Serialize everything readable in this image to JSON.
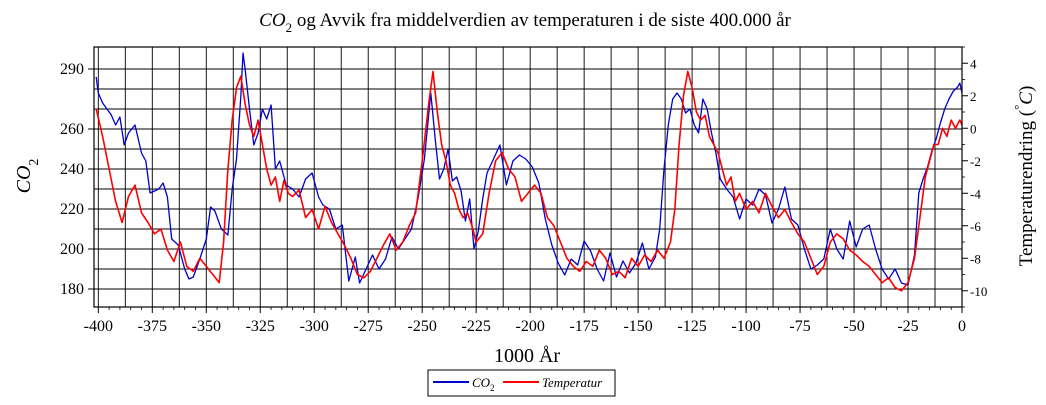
{
  "chart_data": {
    "type": "line",
    "title_prefix": "CO",
    "title_sub": "2",
    "title_rest": " og Avvik fra middelverdien av temperaturen i de siste 400.000 år",
    "xlabel": "1000 År",
    "ylabel_left_main": "CO",
    "ylabel_left_sub": "2",
    "ylabel_right_main": "Temperaturendring (",
    "ylabel_right_unit": "C",
    "ylabel_right_deg": "°",
    "ylabel_right_close": ")",
    "xlim": [
      -402,
      0
    ],
    "ylim_left": [
      171,
      301
    ],
    "ylim_right": [
      -11,
      5
    ],
    "x_ticks": [
      -400,
      -375,
      -350,
      -325,
      -300,
      -275,
      -250,
      -225,
      -200,
      -175,
      -150,
      -125,
      -100,
      -75,
      -50,
      -25,
      0
    ],
    "x_tick_labels": [
      "-400",
      "-375",
      "-350",
      "-325",
      "-300",
      "-275",
      "-250",
      "-225",
      "-200",
      "-175",
      "-150",
      "-125",
      "-100",
      "-75",
      "-50",
      "-25",
      "0"
    ],
    "y_left_ticks": [
      180,
      200,
      220,
      240,
      260,
      290
    ],
    "y_left_tick_labels": [
      "180",
      "200",
      "220",
      "240",
      "260",
      "290"
    ],
    "y_right_ticks": [
      -10,
      -8,
      -6,
      -4,
      -2,
      0,
      2,
      4
    ],
    "y_right_tick_labels": [
      "-10",
      "-8",
      "-6",
      "-4",
      "-2",
      "0",
      "2",
      "4"
    ],
    "grid": true,
    "legend_position": "bottom-center",
    "series": [
      {
        "name": "CO",
        "name_sub": "2",
        "axis": "left",
        "color": "#0000cc",
        "x": [
          -401,
          -400,
          -398,
          -394,
          -392,
          -390,
          -388,
          -386,
          -383,
          -380,
          -378,
          -376,
          -372,
          -370,
          -368,
          -366,
          -363,
          -360,
          -358,
          -356,
          -353,
          -350,
          -348,
          -346,
          -343,
          -340,
          -338,
          -336,
          -334,
          -333,
          -332,
          -330,
          -328,
          -326,
          -324,
          -322,
          -320,
          -318,
          -316,
          -313,
          -310,
          -307,
          -304,
          -301,
          -298,
          -296,
          -293,
          -290,
          -287,
          -284,
          -281,
          -279,
          -276,
          -273,
          -270,
          -267,
          -264,
          -261,
          -258,
          -255,
          -252,
          -249,
          -246,
          -244,
          -242,
          -240,
          -238,
          -236,
          -234,
          -232,
          -230,
          -228,
          -226,
          -224,
          -222,
          -220,
          -217,
          -214,
          -211,
          -208,
          -205,
          -202,
          -199,
          -196,
          -193,
          -190,
          -187,
          -184,
          -181,
          -178,
          -175,
          -172,
          -169,
          -166,
          -163,
          -160,
          -157,
          -154,
          -151,
          -148,
          -145,
          -142,
          -140,
          -138,
          -136,
          -134,
          -132,
          -130,
          -128,
          -126,
          -124,
          -122,
          -120,
          -118,
          -116,
          -114,
          -112,
          -109,
          -106,
          -103,
          -100,
          -97,
          -94,
          -91,
          -88,
          -85,
          -82,
          -79,
          -76,
          -73,
          -70,
          -67,
          -64,
          -61,
          -58,
          -55,
          -52,
          -49,
          -46,
          -43,
          -40,
          -37,
          -34,
          -31,
          -28,
          -25,
          -22,
          -20,
          -18,
          -16,
          -14,
          -12,
          -10,
          -8,
          -6,
          -4,
          -2,
          -1,
          0
        ],
        "y": [
          286,
          278,
          273,
          267,
          262,
          266,
          252,
          258,
          262,
          248,
          244,
          228,
          230,
          233,
          226,
          205,
          202,
          190,
          185,
          186,
          195,
          205,
          221,
          219,
          210,
          207,
          230,
          245,
          276,
          298,
          290,
          270,
          252,
          258,
          270,
          265,
          272,
          240,
          244,
          232,
          230,
          226,
          235,
          238,
          226,
          222,
          220,
          210,
          212,
          184,
          196,
          183,
          190,
          197,
          190,
          195,
          206,
          200,
          205,
          210,
          225,
          245,
          278,
          255,
          235,
          240,
          250,
          234,
          236,
          229,
          214,
          225,
          200,
          209,
          225,
          238,
          245,
          252,
          232,
          244,
          247,
          245,
          241,
          233,
          215,
          202,
          193,
          187,
          195,
          192,
          204,
          199,
          190,
          184,
          198,
          186,
          194,
          188,
          193,
          203,
          190,
          196,
          210,
          240,
          262,
          275,
          278,
          275,
          268,
          270,
          262,
          258,
          275,
          270,
          258,
          248,
          235,
          230,
          226,
          215,
          225,
          222,
          230,
          227,
          213,
          220,
          231,
          215,
          212,
          200,
          190,
          192,
          195,
          210,
          200,
          195,
          214,
          201,
          210,
          212,
          200,
          190,
          185,
          190,
          183,
          182,
          197,
          228,
          235,
          241,
          249,
          255,
          263,
          270,
          275,
          279,
          281,
          283,
          278
        ]
      },
      {
        "name": "Temperatur",
        "axis": "right",
        "color": "#ff0000",
        "x": [
          -401,
          -398,
          -395,
          -392,
          -389,
          -386,
          -383,
          -380,
          -377,
          -374,
          -371,
          -368,
          -365,
          -362,
          -359,
          -356,
          -353,
          -350,
          -347,
          -344,
          -342,
          -340,
          -338,
          -336,
          -334,
          -332,
          -330,
          -328,
          -326,
          -324,
          -322,
          -320,
          -318,
          -316,
          -314,
          -312,
          -310,
          -307,
          -304,
          -301,
          -298,
          -295,
          -292,
          -289,
          -286,
          -283,
          -280,
          -277,
          -274,
          -271,
          -268,
          -265,
          -262,
          -259,
          -256,
          -253,
          -250,
          -247,
          -245,
          -243,
          -241,
          -239,
          -237,
          -235,
          -233,
          -231,
          -229,
          -227,
          -225,
          -222,
          -219,
          -216,
          -213,
          -210,
          -207,
          -204,
          -201,
          -198,
          -195,
          -192,
          -189,
          -186,
          -183,
          -180,
          -177,
          -174,
          -171,
          -168,
          -165,
          -162,
          -159,
          -156,
          -153,
          -150,
          -147,
          -144,
          -141,
          -138,
          -135,
          -133,
          -131,
          -129,
          -127,
          -125,
          -123,
          -121,
          -119,
          -117,
          -115,
          -113,
          -111,
          -109,
          -107,
          -105,
          -103,
          -100,
          -97,
          -94,
          -91,
          -88,
          -85,
          -82,
          -79,
          -76,
          -73,
          -70,
          -67,
          -64,
          -61,
          -58,
          -55,
          -52,
          -49,
          -46,
          -43,
          -40,
          -37,
          -34,
          -31,
          -28,
          -25,
          -22,
          -19,
          -17,
          -15,
          -13,
          -11,
          -9,
          -7,
          -5,
          -3,
          -1,
          0
        ],
        "y": [
          1.2,
          -0.5,
          -2.5,
          -4.5,
          -5.8,
          -4.2,
          -3.5,
          -5.2,
          -5.8,
          -6.5,
          -6.2,
          -7.5,
          -8.2,
          -7.0,
          -8.5,
          -8.8,
          -8.0,
          -8.5,
          -9.0,
          -9.5,
          -7.0,
          -2.5,
          0.5,
          2.5,
          3.2,
          1.5,
          0.2,
          -0.5,
          0.5,
          -1.0,
          -2.5,
          -3.5,
          -3.0,
          -4.5,
          -3.2,
          -4.0,
          -4.2,
          -3.8,
          -5.5,
          -5.0,
          -6.2,
          -4.8,
          -5.8,
          -6.5,
          -7.2,
          -8.0,
          -9.0,
          -9.2,
          -8.8,
          -8.0,
          -7.2,
          -6.5,
          -7.5,
          -7.0,
          -6.0,
          -5.2,
          -2.0,
          1.5,
          3.5,
          1.0,
          -1.0,
          -2.0,
          -3.5,
          -4.0,
          -5.0,
          -5.5,
          -5.2,
          -6.0,
          -7.0,
          -6.5,
          -4.0,
          -2.0,
          -1.5,
          -2.5,
          -3.0,
          -4.5,
          -4.0,
          -3.5,
          -4.0,
          -5.5,
          -6.0,
          -7.0,
          -8.0,
          -8.5,
          -8.8,
          -8.2,
          -8.5,
          -7.5,
          -8.0,
          -9.0,
          -8.8,
          -9.2,
          -8.0,
          -8.5,
          -7.8,
          -8.2,
          -7.5,
          -8.0,
          -7.0,
          -5.0,
          -1.0,
          2.0,
          3.5,
          2.5,
          1.0,
          0.5,
          0.8,
          -0.5,
          -1.0,
          -1.5,
          -2.5,
          -3.5,
          -3.0,
          -4.5,
          -4.0,
          -5.0,
          -4.5,
          -5.2,
          -4.0,
          -4.8,
          -5.5,
          -5.0,
          -5.8,
          -6.5,
          -7.0,
          -8.0,
          -9.0,
          -8.5,
          -7.0,
          -6.5,
          -6.8,
          -7.5,
          -7.8,
          -8.2,
          -8.5,
          -9.0,
          -9.5,
          -9.2,
          -9.8,
          -10.0,
          -9.5,
          -8.0,
          -5.0,
          -3.0,
          -2.0,
          -1.0,
          -1.0,
          0.0,
          -0.5,
          0.5,
          0.0,
          0.5,
          0.2
        ]
      }
    ]
  }
}
